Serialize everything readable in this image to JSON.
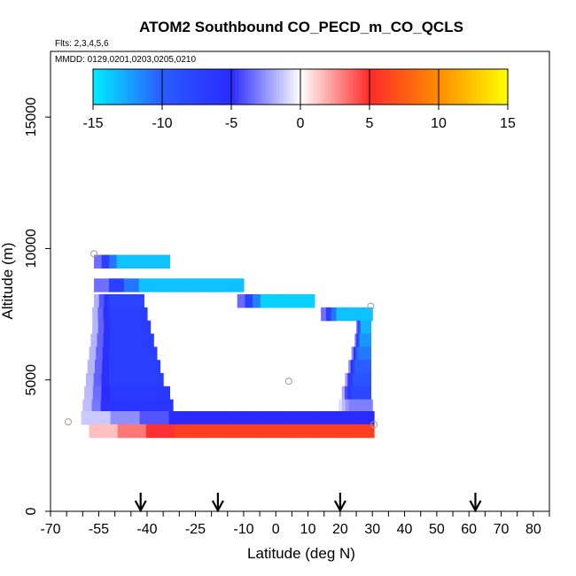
{
  "chart_data": {
    "type": "heatmap",
    "title": "ATOM2 Southbound CO_PECD_m_CO_QCLS",
    "flights_label": "Flts: 2,3,4,5,6",
    "dates_label": "MMDD: 0129,0201,0203,0205,0210",
    "xlabel": "Latitude (deg N)",
    "ylabel": "Altitude (m)",
    "xlim": [
      -70,
      85
    ],
    "ylim": [
      0,
      17500
    ],
    "x_ticks": [
      -70,
      -55,
      -40,
      -25,
      -10,
      0,
      10,
      20,
      30,
      40,
      50,
      60,
      70,
      80
    ],
    "y_ticks": [
      0,
      5000,
      10000,
      15000
    ],
    "colorbar": {
      "range": [
        -15,
        15
      ],
      "ticks": [
        -15,
        -10,
        -5,
        0,
        5,
        10,
        15
      ],
      "colors": [
        "#00eeff",
        "#2a5cff",
        "#2a2aff",
        "#ffffff",
        "#ff2a2a",
        "#ff8c00",
        "#ffff00"
      ]
    },
    "arrows_latitude": [
      -42,
      -18,
      20,
      62
    ],
    "curtain_rows": [
      {
        "alt": 9500,
        "segments": [
          {
            "x0": -56.5,
            "x1": -33,
            "v": -13.5
          }
        ]
      },
      {
        "alt": 8600,
        "segments": [
          {
            "x0": -56.5,
            "x1": -10,
            "v": -13.5
          }
        ]
      },
      {
        "alt": 8000,
        "segments": [
          {
            "x0": -56.5,
            "x1": -41,
            "v": -7.5
          },
          {
            "x0": -12,
            "x1": 12,
            "v": -14
          }
        ]
      },
      {
        "alt": 7500,
        "segments": [
          {
            "x0": -57,
            "x1": -40,
            "v": -7
          },
          {
            "x0": 14,
            "x1": 30,
            "v": -13.5
          }
        ]
      },
      {
        "alt": 7000,
        "segments": [
          {
            "x0": -57,
            "x1": -39,
            "v": -7
          },
          {
            "x0": 25,
            "x1": 29.5,
            "v": -13
          }
        ]
      },
      {
        "alt": 6500,
        "segments": [
          {
            "x0": -57.5,
            "x1": -38,
            "v": -7
          },
          {
            "x0": 24.5,
            "x1": 29.5,
            "v": -12
          }
        ]
      },
      {
        "alt": 6000,
        "segments": [
          {
            "x0": -58,
            "x1": -37,
            "v": -7
          },
          {
            "x0": 23.5,
            "x1": 29.5,
            "v": -11
          }
        ]
      },
      {
        "alt": 5500,
        "segments": [
          {
            "x0": -58.5,
            "x1": -36,
            "v": -7
          },
          {
            "x0": 22.5,
            "x1": 29.5,
            "v": -10
          }
        ]
      },
      {
        "alt": 5000,
        "segments": [
          {
            "x0": -59,
            "x1": -35,
            "v": -7
          },
          {
            "x0": 21.5,
            "x1": 29.5,
            "v": -9
          }
        ]
      },
      {
        "alt": 4500,
        "segments": [
          {
            "x0": -59.5,
            "x1": -33,
            "v": -6.5
          },
          {
            "x0": 20.5,
            "x1": 29.5,
            "v": -8
          }
        ]
      },
      {
        "alt": 4000,
        "segments": [
          {
            "x0": -60,
            "x1": -32,
            "v": -6
          },
          {
            "x0": 19.5,
            "x1": 30,
            "v": -3
          }
        ]
      },
      {
        "alt": 3550,
        "segments": [
          {
            "x0": -60.5,
            "x1": 30.5,
            "v": -5
          }
        ]
      },
      {
        "alt": 3050,
        "segments": [
          {
            "x0": -58,
            "x1": 30.5,
            "v": 6
          }
        ]
      }
    ],
    "points": [
      {
        "lat": -56.5,
        "alt": 9800
      },
      {
        "lat": -64.5,
        "alt": 3400
      },
      {
        "lat": 4,
        "alt": 4950
      },
      {
        "lat": 29.5,
        "alt": 7800
      },
      {
        "lat": 30.5,
        "alt": 3300
      }
    ]
  }
}
